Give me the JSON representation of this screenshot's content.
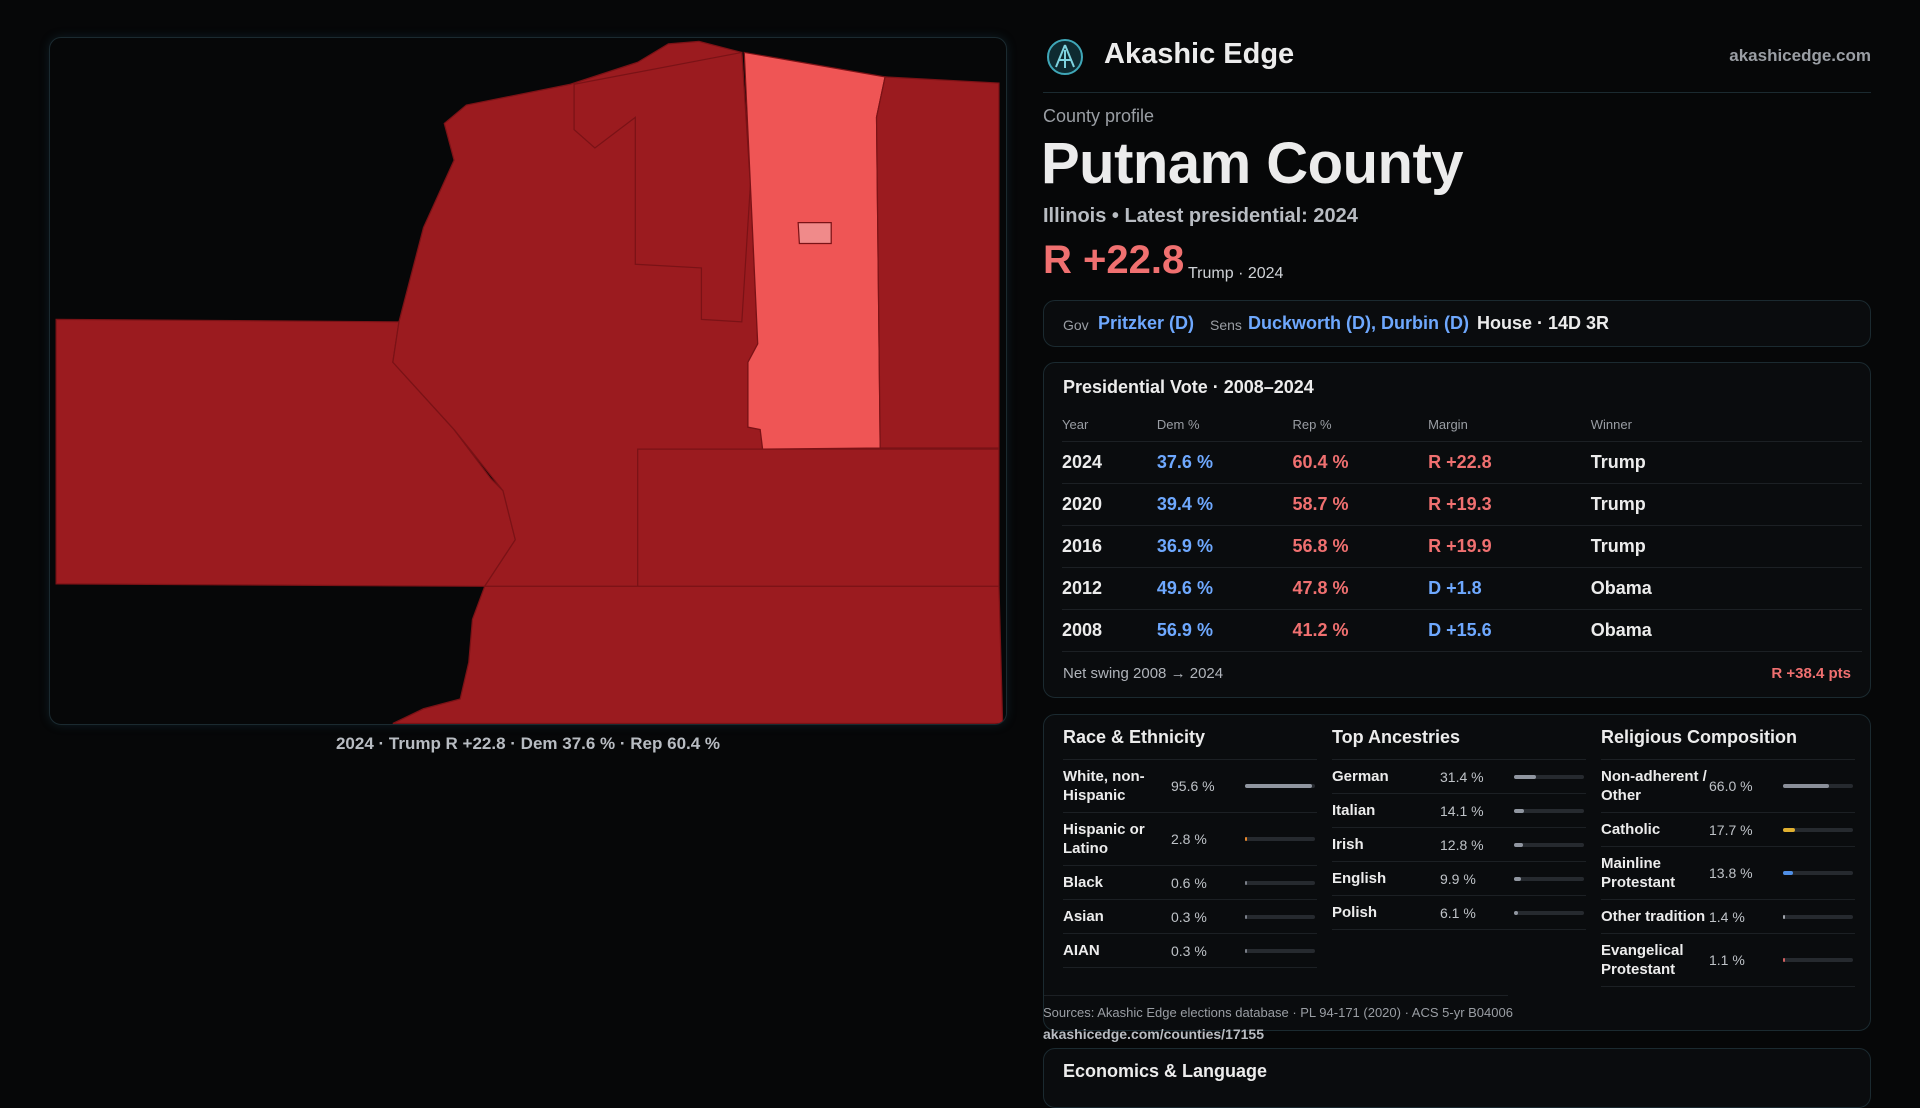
{
  "header": {
    "brand": "Akashic Edge",
    "site": "akashicedge.com"
  },
  "profile": {
    "eyebrow": "County profile",
    "name": "Putnam County",
    "subtitle": "Illinois • Latest presidential: 2024",
    "margin": "R +22.8",
    "margin_note": "Trump · 2024"
  },
  "officials": {
    "gov_label": "Gov",
    "gov": "Pritzker (D)",
    "sens_label": "Sens",
    "sens": "Duckworth (D), Durbin (D)",
    "house": "House · 14D 3R"
  },
  "map": {
    "caption": "2024 · Trump R +22.8 · Dem 37.6 % · Rep 60.4 %"
  },
  "votes": {
    "title": "Presidential Vote · 2008–2024",
    "columns": [
      "Year",
      "Dem %",
      "Rep %",
      "Margin",
      "Winner"
    ],
    "rows": [
      [
        "2024",
        "37.6 %",
        "60.4 %",
        "R +22.8",
        "Trump"
      ],
      [
        "2020",
        "39.4 %",
        "58.7 %",
        "R +19.3",
        "Trump"
      ],
      [
        "2016",
        "36.9 %",
        "56.8 %",
        "R +19.9",
        "Trump"
      ],
      [
        "2012",
        "49.6 %",
        "47.8 %",
        "D +1.8",
        "Obama"
      ],
      [
        "2008",
        "56.9 %",
        "41.2 %",
        "D +15.6",
        "Obama"
      ]
    ],
    "swing_label": "Net swing 2008 → 2024",
    "swing": "R +38.4 pts"
  },
  "demographics": [
    {
      "title": "Race & Ethnicity",
      "xlim": [
        0,
        100
      ],
      "rows": [
        {
          "label": "White, non-Hispanic",
          "value": 95.6,
          "value_label": "95.6 %",
          "color": "#9096a0"
        },
        {
          "label": "Hispanic or Latino",
          "value": 2.8,
          "value_label": "2.8 %",
          "color": "#e8882c"
        },
        {
          "label": "Black",
          "value": 0.6,
          "value_label": "0.6 %",
          "color": "#7a7f88"
        },
        {
          "label": "Asian",
          "value": 0.3,
          "value_label": "0.3 %",
          "color": "#7a7f88"
        },
        {
          "label": "AIAN",
          "value": 0.3,
          "value_label": "0.3 %",
          "color": "#7a7f88"
        }
      ]
    },
    {
      "title": "Top Ancestries",
      "xlim": [
        0,
        100
      ],
      "rows": [
        {
          "label": "German",
          "value": 31.4,
          "value_label": "31.4 %",
          "color": "#9096a0"
        },
        {
          "label": "Italian",
          "value": 14.1,
          "value_label": "14.1 %",
          "color": "#9096a0"
        },
        {
          "label": "Irish",
          "value": 12.8,
          "value_label": "12.8 %",
          "color": "#9096a0"
        },
        {
          "label": "English",
          "value": 9.9,
          "value_label": "9.9 %",
          "color": "#9096a0"
        },
        {
          "label": "Polish",
          "value": 6.1,
          "value_label": "6.1 %",
          "color": "#9096a0"
        }
      ]
    },
    {
      "title": "Religious Composition",
      "xlim": [
        0,
        100
      ],
      "rows": [
        {
          "label": "Non-adherent / Other",
          "value": 66.0,
          "value_label": "66.0 %",
          "color": "#8a8f99"
        },
        {
          "label": "Catholic",
          "value": 17.7,
          "value_label": "17.7 %",
          "color": "#e0b030"
        },
        {
          "label": "Mainline Protestant",
          "value": 13.8,
          "value_label": "13.8 %",
          "color": "#4f8fe6"
        },
        {
          "label": "Other tradition",
          "value": 1.4,
          "value_label": "1.4 %",
          "color": "#a0a4ab"
        },
        {
          "label": "Evangelical Protestant",
          "value": 1.1,
          "value_label": "1.1 %",
          "color": "#d06060"
        }
      ]
    }
  ],
  "sources": "Sources: Akashic Edge elections database · PL 94-171 (2020) · ACS 5-yr B04006",
  "url": "akashicedge.com/counties/17155",
  "economics": {
    "title": "Economics & Language"
  }
}
